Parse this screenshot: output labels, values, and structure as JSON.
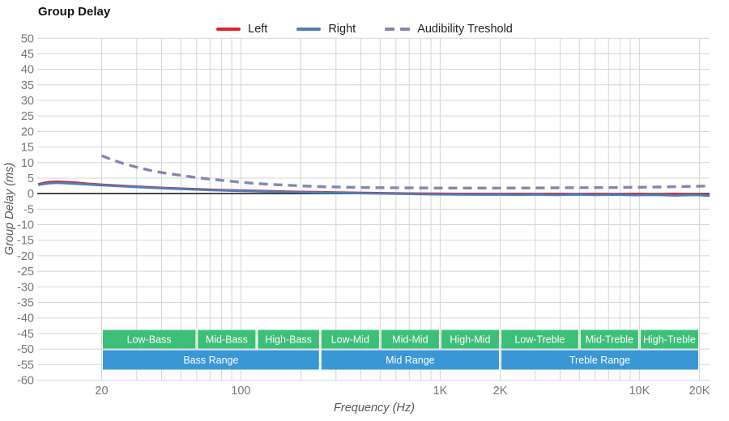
{
  "header": {
    "title": "Group Delay"
  },
  "legend": {
    "items": [
      {
        "name": "left",
        "label": "Left",
        "color": "#e02128",
        "dashed": false
      },
      {
        "name": "right",
        "label": "Right",
        "color": "#4e7fba",
        "dashed": false
      },
      {
        "name": "audibility-threshold",
        "label": "Audibility Treshold",
        "color": "#8487ae",
        "dashed": true
      }
    ]
  },
  "chart_data": {
    "type": "line",
    "title": "Group Delay",
    "xlabel": "Frequency (Hz)",
    "ylabel": "Group Delay (ms)",
    "x_scale": "log",
    "x_range": [
      9.5,
      23000
    ],
    "ylim": [
      -60,
      50
    ],
    "y_tick_step": 5,
    "grid": true,
    "grid_color": "#d5d5d5",
    "zero_line_color": "#2f2f2f",
    "tick_label_color": "#757575",
    "x_major_ticks": [
      {
        "value": 20,
        "label": "20"
      },
      {
        "value": 100,
        "label": "100"
      },
      {
        "value": 1000,
        "label": "1K"
      },
      {
        "value": 2000,
        "label": "2K"
      },
      {
        "value": 10000,
        "label": "10K"
      },
      {
        "value": 20000,
        "label": "20K"
      }
    ],
    "x_gridlines": [
      20,
      30,
      40,
      50,
      60,
      70,
      80,
      90,
      100,
      200,
      300,
      400,
      500,
      600,
      700,
      800,
      900,
      1000,
      2000,
      3000,
      4000,
      5000,
      6000,
      7000,
      8000,
      9000,
      10000,
      20000
    ],
    "series": [
      {
        "name": "Left",
        "color": "#e02128",
        "style": "solid",
        "width": 2.8,
        "points": [
          [
            9.6,
            3.0
          ],
          [
            10.3,
            3.45
          ],
          [
            11,
            3.75
          ],
          [
            12,
            3.85
          ],
          [
            13.5,
            3.7
          ],
          [
            15,
            3.5
          ],
          [
            17,
            3.2
          ],
          [
            20,
            2.9
          ],
          [
            24,
            2.6
          ],
          [
            29,
            2.3
          ],
          [
            35,
            2.05
          ],
          [
            43,
            1.8
          ],
          [
            52,
            1.6
          ],
          [
            63,
            1.4
          ],
          [
            78,
            1.2
          ],
          [
            95,
            1.05
          ],
          [
            120,
            0.9
          ],
          [
            150,
            0.75
          ],
          [
            190,
            0.6
          ],
          [
            240,
            0.5
          ],
          [
            300,
            0.4
          ],
          [
            380,
            0.3
          ],
          [
            480,
            0.2
          ],
          [
            600,
            0.1
          ],
          [
            750,
            0.05
          ],
          [
            950,
            0.0
          ],
          [
            1200,
            -0.05
          ],
          [
            1500,
            -0.1
          ],
          [
            1900,
            -0.1
          ],
          [
            2400,
            -0.05
          ],
          [
            3000,
            -0.15
          ],
          [
            3800,
            -0.1
          ],
          [
            4800,
            -0.2
          ],
          [
            6000,
            -0.1
          ],
          [
            7500,
            -0.2
          ],
          [
            9500,
            -0.1
          ],
          [
            12000,
            -0.2
          ],
          [
            15000,
            -0.15
          ],
          [
            19000,
            -0.25
          ],
          [
            22500,
            -0.4
          ]
        ]
      },
      {
        "name": "Right",
        "color": "#4e7fba",
        "style": "solid",
        "width": 2.8,
        "points": [
          [
            9.6,
            2.8
          ],
          [
            10.3,
            3.1
          ],
          [
            11,
            3.35
          ],
          [
            12,
            3.45
          ],
          [
            13.5,
            3.3
          ],
          [
            15,
            3.15
          ],
          [
            17,
            2.95
          ],
          [
            20,
            2.7
          ],
          [
            24,
            2.4
          ],
          [
            29,
            2.15
          ],
          [
            35,
            1.9
          ],
          [
            43,
            1.65
          ],
          [
            52,
            1.45
          ],
          [
            63,
            1.25
          ],
          [
            78,
            1.05
          ],
          [
            95,
            0.9
          ],
          [
            120,
            0.75
          ],
          [
            150,
            0.6
          ],
          [
            190,
            0.45
          ],
          [
            240,
            0.35
          ],
          [
            300,
            0.25
          ],
          [
            380,
            0.15
          ],
          [
            480,
            0.05
          ],
          [
            600,
            -0.05
          ],
          [
            750,
            -0.15
          ],
          [
            950,
            -0.25
          ],
          [
            1200,
            -0.3
          ],
          [
            1500,
            -0.35
          ],
          [
            1900,
            -0.3
          ],
          [
            2400,
            -0.4
          ],
          [
            3000,
            -0.3
          ],
          [
            3800,
            -0.45
          ],
          [
            4800,
            -0.3
          ],
          [
            6000,
            -0.45
          ],
          [
            7500,
            -0.35
          ],
          [
            9500,
            -0.5
          ],
          [
            12000,
            -0.4
          ],
          [
            15000,
            -0.6
          ],
          [
            19000,
            -0.45
          ],
          [
            22500,
            -0.7
          ]
        ]
      },
      {
        "name": "Audibility Treshold",
        "color": "#8487ae",
        "style": "dashed",
        "width": 3.4,
        "points": [
          [
            20,
            12.2
          ],
          [
            23,
            10.7
          ],
          [
            26,
            9.6
          ],
          [
            30,
            8.5
          ],
          [
            35,
            7.5
          ],
          [
            40,
            6.8
          ],
          [
            47,
            6.1
          ],
          [
            55,
            5.5
          ],
          [
            65,
            4.9
          ],
          [
            78,
            4.35
          ],
          [
            92,
            3.9
          ],
          [
            110,
            3.45
          ],
          [
            135,
            3.05
          ],
          [
            165,
            2.75
          ],
          [
            200,
            2.5
          ],
          [
            250,
            2.25
          ],
          [
            320,
            2.1
          ],
          [
            420,
            1.95
          ],
          [
            550,
            1.9
          ],
          [
            750,
            1.85
          ],
          [
            1000,
            1.8
          ],
          [
            1400,
            1.8
          ],
          [
            2000,
            1.8
          ],
          [
            2800,
            1.82
          ],
          [
            4000,
            1.88
          ],
          [
            5500,
            1.92
          ],
          [
            7500,
            1.98
          ],
          [
            10000,
            2.05
          ],
          [
            13000,
            2.15
          ],
          [
            17000,
            2.3
          ],
          [
            21500,
            2.45
          ]
        ]
      }
    ],
    "bands": {
      "sub": {
        "color": "#3cbf76",
        "text_color": "#ffffff",
        "items": [
          {
            "label": "Low-Bass",
            "f1": 20,
            "f2": 60
          },
          {
            "label": "Mid-Bass",
            "f1": 60,
            "f2": 120
          },
          {
            "label": "High-Bass",
            "f1": 120,
            "f2": 250
          },
          {
            "label": "Low-Mid",
            "f1": 250,
            "f2": 500
          },
          {
            "label": "Mid-Mid",
            "f1": 500,
            "f2": 1000
          },
          {
            "label": "High-Mid",
            "f1": 1000,
            "f2": 2000
          },
          {
            "label": "Low-Treble",
            "f1": 2000,
            "f2": 5000
          },
          {
            "label": "Mid-Treble",
            "f1": 5000,
            "f2": 10000
          },
          {
            "label": "High-Treble",
            "f1": 10000,
            "f2": 20000
          }
        ]
      },
      "main": {
        "color": "#3a97d5",
        "text_color": "#ffffff",
        "items": [
          {
            "label": "Bass Range",
            "f1": 20,
            "f2": 250
          },
          {
            "label": "Mid Range",
            "f1": 250,
            "f2": 2000
          },
          {
            "label": "Treble Range",
            "f1": 2000,
            "f2": 20000
          }
        ]
      }
    }
  }
}
